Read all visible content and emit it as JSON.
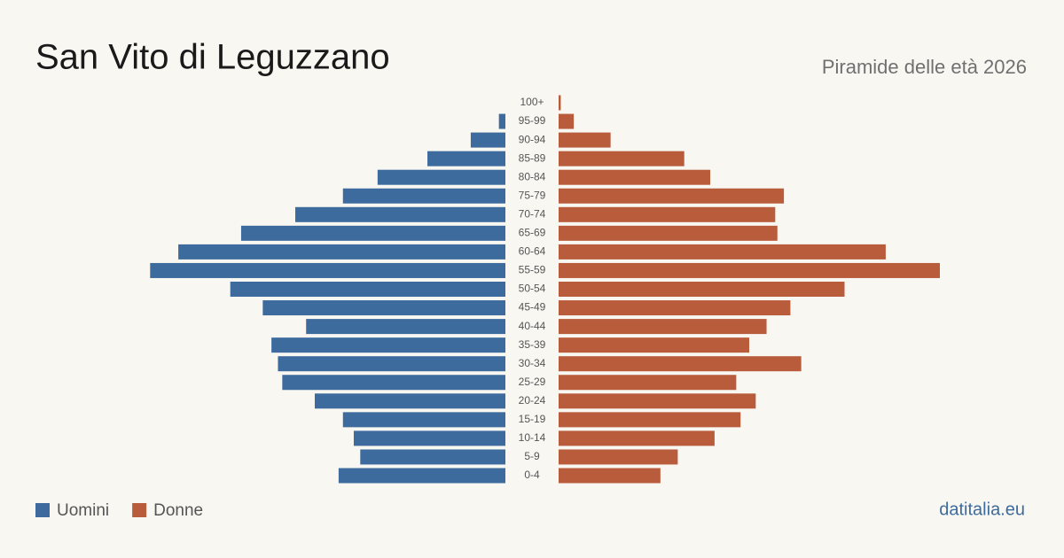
{
  "chart_data": {
    "type": "pyramid",
    "title": "San Vito di Leguzzano",
    "subtitle": "Piramide delle età 2026",
    "source": "datitalia.eu",
    "categories": [
      "100+",
      "95-99",
      "90-94",
      "85-89",
      "80-84",
      "75-79",
      "70-74",
      "65-69",
      "60-64",
      "55-59",
      "50-54",
      "45-49",
      "40-44",
      "35-39",
      "30-34",
      "25-29",
      "20-24",
      "15-19",
      "10-14",
      "5-9",
      "0-4"
    ],
    "series": [
      {
        "name": "Uomini",
        "color": "#3d6b9e",
        "values": [
          0,
          3,
          16,
          36,
          59,
          75,
          97,
          122,
          151,
          164,
          127,
          112,
          92,
          108,
          105,
          103,
          88,
          75,
          70,
          67,
          77
        ]
      },
      {
        "name": "Donne",
        "color": "#b85c3c",
        "values": [
          1,
          7,
          24,
          58,
          70,
          104,
          100,
          101,
          151,
          176,
          132,
          107,
          96,
          88,
          112,
          82,
          91,
          84,
          72,
          55,
          47
        ]
      }
    ]
  }
}
